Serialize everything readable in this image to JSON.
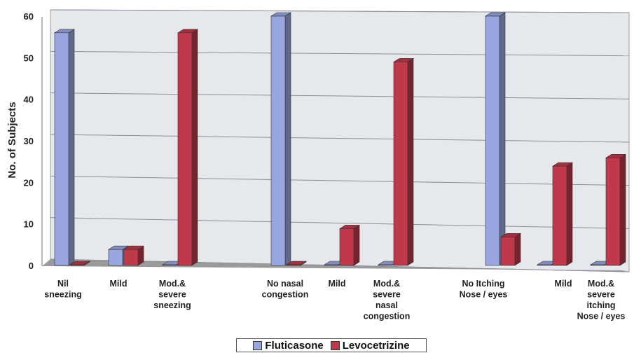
{
  "chart_data": {
    "type": "bar",
    "ylabel": "No. of Subjects",
    "ylim": [
      0,
      60
    ],
    "yticks": [
      0,
      10,
      20,
      30,
      40,
      50,
      60
    ],
    "grid": true,
    "legend_position": "bottom",
    "categories": [
      [
        "Nil",
        "sneezing"
      ],
      [
        "Mild"
      ],
      [
        "Mod.&",
        "severe",
        "sneezing"
      ],
      [
        "No nasal",
        "congestion"
      ],
      [
        "Mild"
      ],
      [
        "Mod.&",
        "severe",
        "nasal",
        "congestion"
      ],
      [
        "No Itching",
        "Nose / eyes"
      ],
      [
        "Mild"
      ],
      [
        "Mod.&",
        "severe",
        "itching",
        "Nose /  eyes"
      ]
    ],
    "series": [
      {
        "name": "Fluticasone",
        "color": "#9aa6e0",
        "values": [
          56,
          4,
          0,
          60,
          0,
          0,
          60,
          0,
          0
        ]
      },
      {
        "name": "Levocetrizine",
        "color": "#c0394a",
        "values": [
          0,
          4,
          56,
          0,
          9,
          49,
          7,
          24,
          26
        ]
      }
    ]
  }
}
